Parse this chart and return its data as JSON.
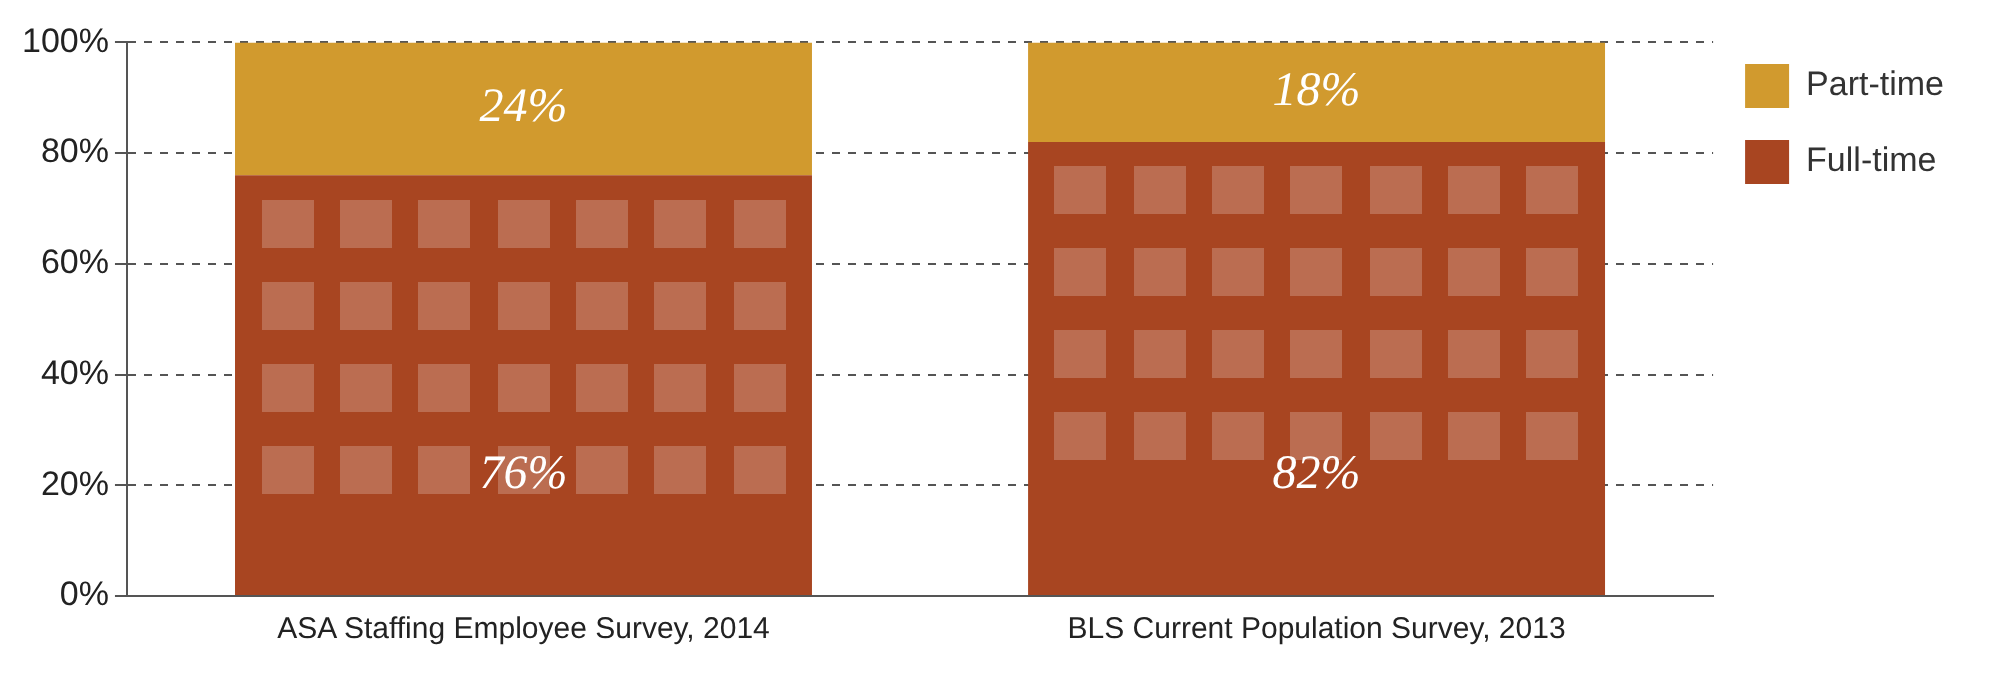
{
  "chart_data": {
    "type": "bar",
    "stacked": true,
    "categories": [
      "ASA Staffing Employee Survey, 2014",
      "BLS Current Population Survey, 2013"
    ],
    "series": [
      {
        "name": "Full-time",
        "color": "#a84521",
        "values": [
          76,
          82
        ],
        "value_labels": [
          "76%",
          "82%"
        ]
      },
      {
        "name": "Part-time",
        "color": "#d19a2e",
        "values": [
          24,
          18
        ],
        "value_labels": [
          "24%",
          "18%"
        ]
      }
    ],
    "ylim": [
      0,
      100
    ],
    "yticks": [
      {
        "value": 0,
        "label": "0%"
      },
      {
        "value": 20,
        "label": "20%"
      },
      {
        "value": 40,
        "label": "40%"
      },
      {
        "value": 60,
        "label": "60%"
      },
      {
        "value": 80,
        "label": "80%"
      },
      {
        "value": 100,
        "label": "100%"
      }
    ],
    "grid": "y",
    "legend": "top right"
  }
}
